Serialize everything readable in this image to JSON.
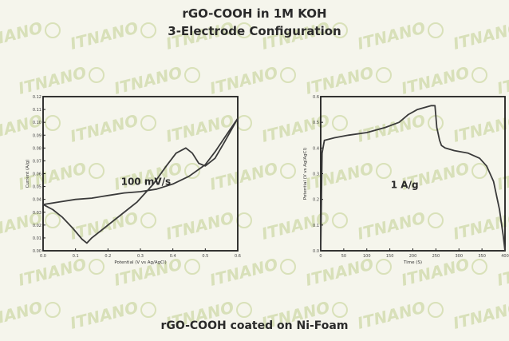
{
  "header": {
    "title": "rGO-COOH in 1M KOH",
    "subtitle": "3-Electrode Configuration"
  },
  "footer": {
    "caption": "rGO-COOH coated on Ni-Foam"
  },
  "watermark": {
    "text": "ITNANO"
  },
  "colors": {
    "curve": "#3a3a3a",
    "axis": "#1e1e1e",
    "background": "#f5f5ec",
    "watermark": "#cfd9a8"
  },
  "chart_data": [
    {
      "type": "line",
      "xlabel": "Potential (V vs Ag/AgCl)",
      "ylabel": "Current (A/g)",
      "xlim": [
        0.0,
        0.6
      ],
      "ylim": [
        0.0,
        0.12
      ],
      "xticks": [
        "0.0",
        "0.1",
        "0.2",
        "0.3",
        "0.4",
        "0.5",
        "0.6"
      ],
      "yticks": [
        "0.00",
        "0.01",
        "0.02",
        "0.03",
        "0.04",
        "0.05",
        "0.06",
        "0.07",
        "0.08",
        "0.09",
        "0.10",
        "0.11",
        "0.12"
      ],
      "annotation": "100 mV/s",
      "grid": false,
      "series": [
        {
          "x": [
            0.0,
            0.03,
            0.06,
            0.09,
            0.12,
            0.135,
            0.15,
            0.19,
            0.24,
            0.29,
            0.34,
            0.38,
            0.41,
            0.44,
            0.46,
            0.48,
            0.5,
            0.53,
            0.56,
            0.6,
            0.57,
            0.53,
            0.5,
            0.45,
            0.4,
            0.35,
            0.3,
            0.25,
            0.2,
            0.15,
            0.1,
            0.05,
            0.0
          ],
          "y": [
            0.036,
            0.032,
            0.026,
            0.018,
            0.009,
            0.006,
            0.01,
            0.018,
            0.028,
            0.038,
            0.052,
            0.066,
            0.076,
            0.08,
            0.076,
            0.068,
            0.066,
            0.072,
            0.085,
            0.103,
            0.092,
            0.077,
            0.067,
            0.058,
            0.052,
            0.048,
            0.046,
            0.045,
            0.043,
            0.041,
            0.04,
            0.038,
            0.036
          ]
        }
      ]
    },
    {
      "type": "line",
      "xlabel": "Time (S)",
      "ylabel": "Potential (V vs Ag/AgCl)",
      "xlim": [
        0,
        400
      ],
      "ylim": [
        0.0,
        0.6
      ],
      "xticks": [
        "0",
        "50",
        "100",
        "150",
        "200",
        "250",
        "300",
        "350",
        "400"
      ],
      "yticks": [
        "0.0",
        "0.1",
        "0.2",
        "0.3",
        "0.4",
        "0.5",
        "0.6"
      ],
      "annotation": "1 A/g",
      "grid": false,
      "series": [
        {
          "x": [
            0,
            3,
            8,
            30,
            60,
            100,
            140,
            170,
            190,
            210,
            230,
            240,
            248,
            252,
            258,
            262,
            270,
            290,
            320,
            345,
            360,
            375,
            388,
            396,
            400
          ],
          "y": [
            0.0,
            0.38,
            0.43,
            0.44,
            0.45,
            0.46,
            0.48,
            0.5,
            0.53,
            0.55,
            0.56,
            0.565,
            0.565,
            0.48,
            0.43,
            0.41,
            0.4,
            0.39,
            0.38,
            0.36,
            0.33,
            0.27,
            0.16,
            0.06,
            0.0
          ]
        }
      ]
    }
  ]
}
